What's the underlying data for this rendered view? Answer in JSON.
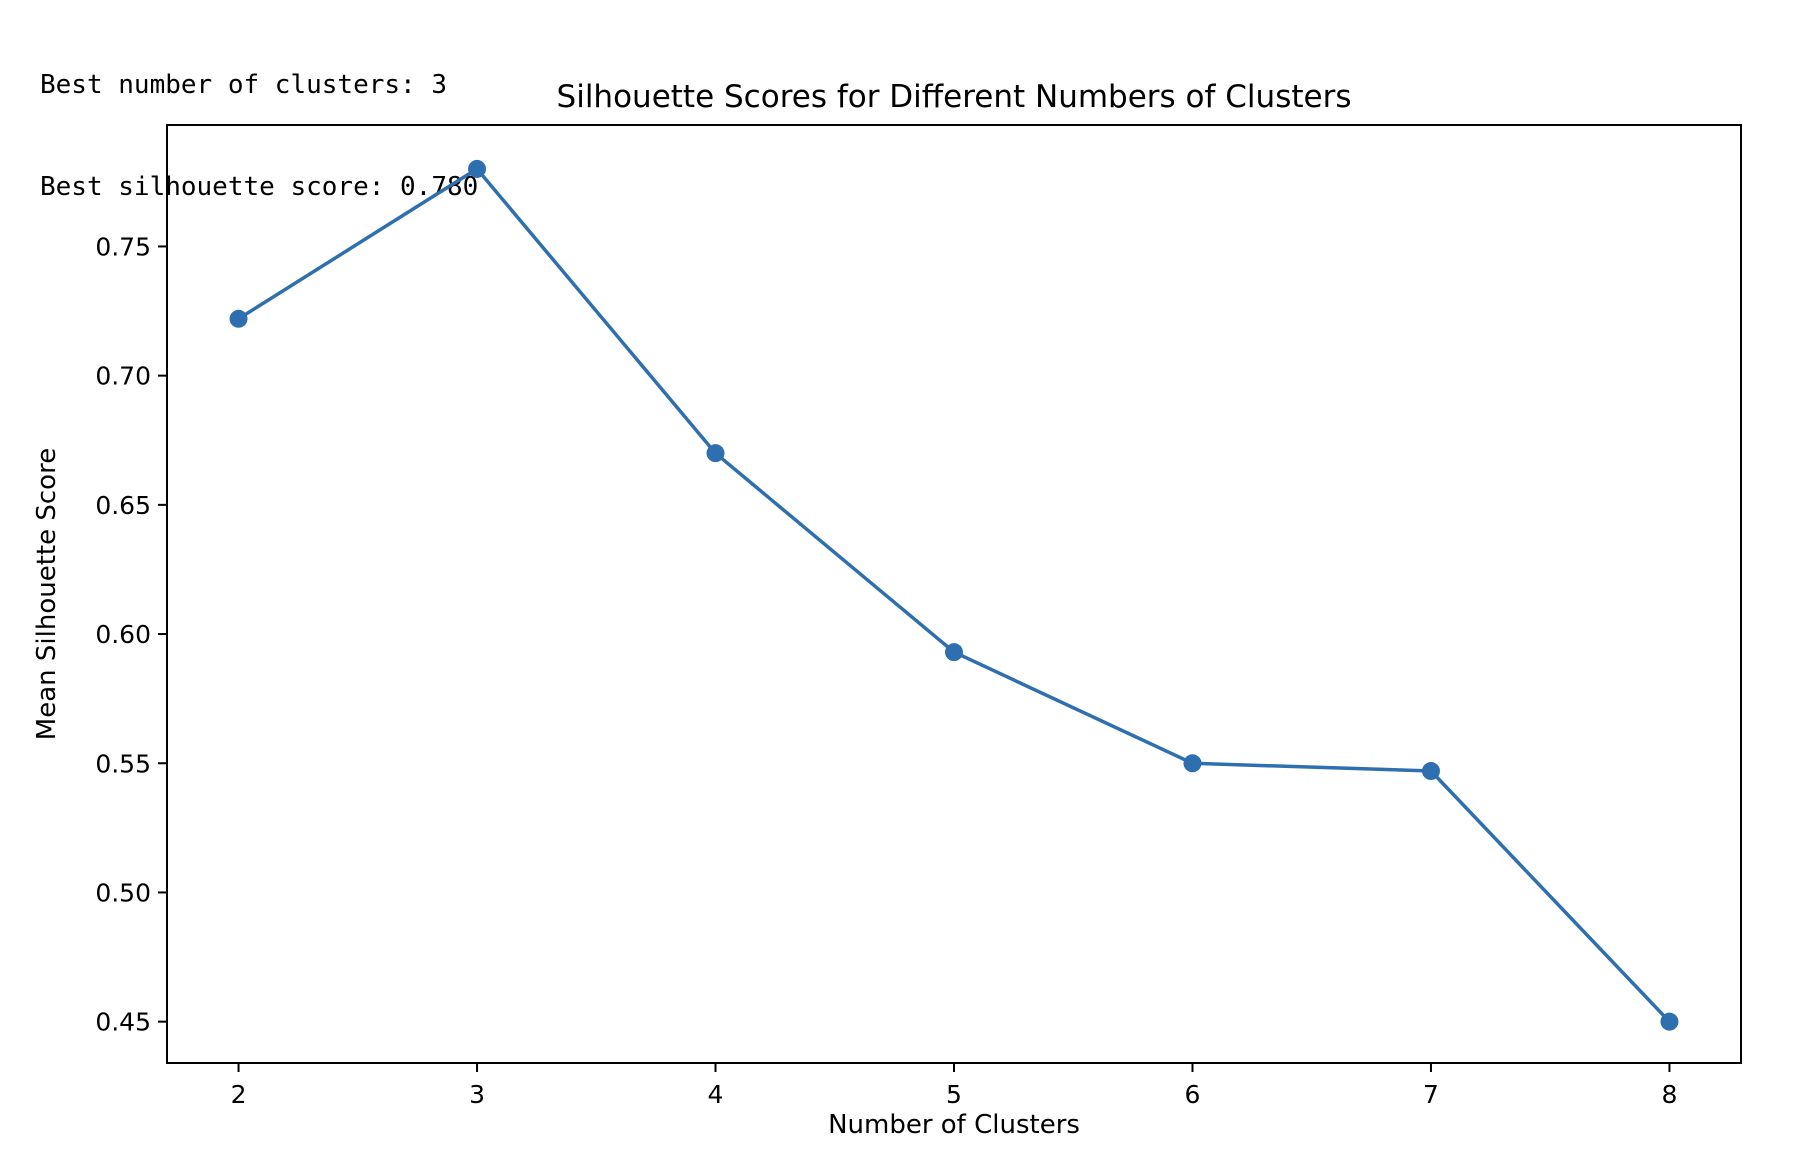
{
  "output": {
    "lines": [
      "Best number of clusters: 3",
      "Best silhouette score: 0.780"
    ]
  },
  "chart_data": {
    "type": "line",
    "title": "Silhouette Scores for Different Numbers of Clusters",
    "xlabel": "Number of Clusters",
    "ylabel": "Mean Silhouette Score",
    "x": [
      2,
      3,
      4,
      5,
      6,
      7,
      8
    ],
    "series": [
      {
        "values": [
          0.722,
          0.78,
          0.67,
          0.593,
          0.55,
          0.547,
          0.45
        ],
        "color": "#2e6fb0",
        "marker": "circle"
      }
    ],
    "xticks": [
      "2",
      "3",
      "4",
      "5",
      "6",
      "7",
      "8"
    ],
    "yticks": [
      "0.45",
      "0.50",
      "0.55",
      "0.60",
      "0.65",
      "0.70",
      "0.75"
    ],
    "ytick_values": [
      0.45,
      0.5,
      0.55,
      0.6,
      0.65,
      0.7,
      0.75
    ],
    "xlim": [
      1.7,
      8.3
    ],
    "ylim": [
      0.434,
      0.797
    ],
    "grid": false,
    "legend": "none"
  }
}
